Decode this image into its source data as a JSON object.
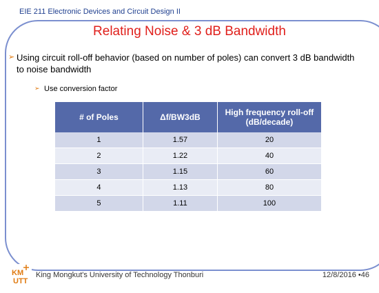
{
  "course": "EIE 211 Electronic Devices and Circuit Design II",
  "title": "Relating Noise & 3 dB Bandwidth",
  "bullet1": "Using circuit roll-off behavior (based on number of poles) can convert 3 dB bandwidth to noise bandwidth",
  "bullet2": "Use conversion factor",
  "table": {
    "headers": [
      "# of Poles",
      "Δf/BW3dB",
      "High frequency roll-off (dB/decade)"
    ],
    "rows": [
      [
        "1",
        "1.57",
        "20"
      ],
      [
        "2",
        "1.22",
        "40"
      ],
      [
        "3",
        "1.15",
        "60"
      ],
      [
        "4",
        "1.13",
        "80"
      ],
      [
        "5",
        "1.11",
        "100"
      ]
    ]
  },
  "logo_text": "KMUTT",
  "footer": "King Mongkut's University of Technology Thonburi",
  "date_page": "12/8/2016 •46",
  "colors": {
    "title": "#e0201c",
    "header_bg": "#5469a9",
    "row_odd": "#d2d7e9",
    "row_even": "#e9ecf5",
    "frame": "#7b8fcf"
  }
}
